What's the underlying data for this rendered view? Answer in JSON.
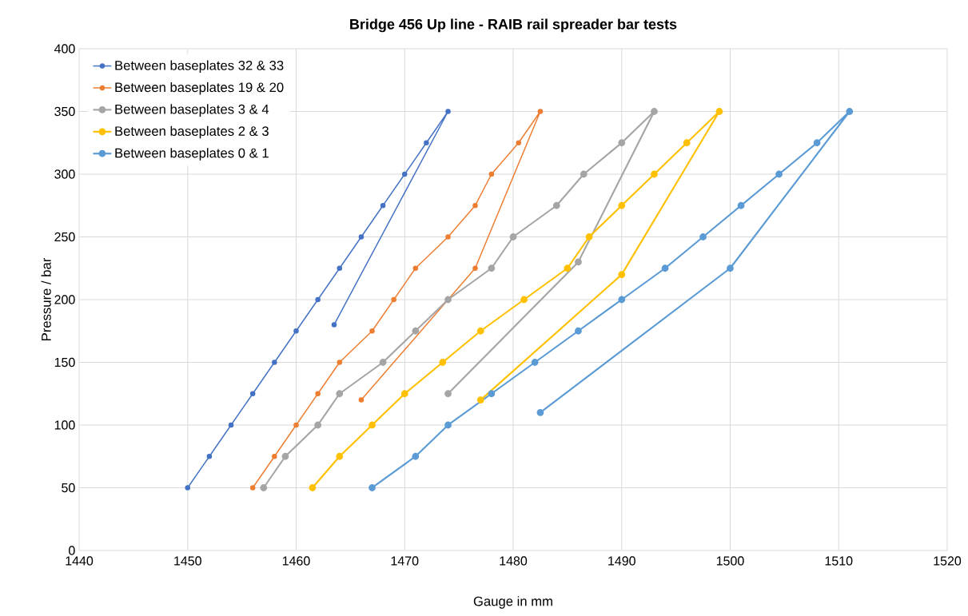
{
  "chart_data": {
    "type": "line",
    "title": "Bridge 456 Up line - RAIB rail spreader bar tests",
    "xlabel": "Gauge in mm",
    "ylabel": "Pressure / bar",
    "xlim": [
      1440,
      1520
    ],
    "ylim": [
      0,
      400
    ],
    "xticks": [
      1440,
      1450,
      1460,
      1470,
      1480,
      1490,
      1500,
      1510,
      1520
    ],
    "yticks": [
      0,
      50,
      100,
      150,
      200,
      250,
      300,
      350,
      400
    ],
    "grid": true,
    "legend": "top left",
    "marker": "circle",
    "line_style": "solid",
    "series": [
      {
        "name": "Between baseplates 32 & 33",
        "color": "#4472c4",
        "x": [
          1450,
          1452,
          1454,
          1456,
          1458,
          1460,
          1462,
          1464,
          1466,
          1468,
          1470,
          1472,
          1474,
          1463.5
        ],
        "values": [
          50,
          75,
          100,
          125,
          150,
          175,
          200,
          225,
          250,
          275,
          300,
          325,
          350,
          180
        ]
      },
      {
        "name": "Between baseplates 19 & 20",
        "color": "#ed7d31",
        "x": [
          1456,
          1458,
          1460,
          1462,
          1464,
          1467,
          1469,
          1471,
          1474,
          1476.5,
          1478,
          1480.5,
          1482.5,
          1476.5,
          1466
        ],
        "values": [
          50,
          75,
          100,
          125,
          150,
          175,
          200,
          225,
          250,
          275,
          300,
          325,
          350,
          225,
          120
        ]
      },
      {
        "name": "Between baseplates 3 & 4",
        "color": "#a5a5a5",
        "x": [
          1457,
          1459,
          1462,
          1464,
          1468,
          1471,
          1474,
          1478,
          1480,
          1484,
          1486.5,
          1490,
          1493,
          1486,
          1474
        ],
        "values": [
          50,
          75,
          100,
          125,
          150,
          175,
          200,
          225,
          250,
          275,
          300,
          325,
          350,
          230,
          125
        ]
      },
      {
        "name": "Between baseplates 2 & 3",
        "color": "#ffc000",
        "x": [
          1461.5,
          1464,
          1467,
          1470,
          1473.5,
          1477,
          1481,
          1485,
          1487,
          1490,
          1493,
          1496,
          1499,
          1490,
          1477
        ],
        "values": [
          50,
          75,
          100,
          125,
          150,
          175,
          200,
          225,
          250,
          275,
          300,
          325,
          350,
          220,
          120
        ]
      },
      {
        "name": "Between baseplates 0 & 1",
        "color": "#5b9bd5",
        "x": [
          1467,
          1471,
          1474,
          1478,
          1482,
          1486,
          1490,
          1494,
          1497.5,
          1501,
          1504.5,
          1508,
          1511,
          1500,
          1482.5
        ],
        "values": [
          50,
          75,
          100,
          125,
          150,
          175,
          200,
          225,
          250,
          275,
          300,
          325,
          350,
          225,
          110
        ]
      }
    ]
  }
}
